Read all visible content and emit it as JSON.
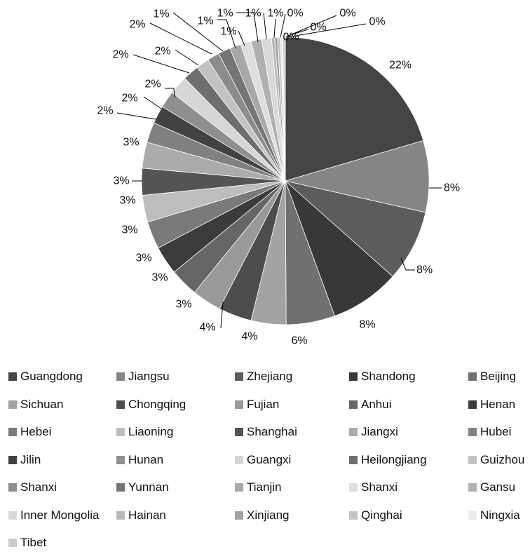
{
  "chart_data": {
    "type": "pie",
    "title": "",
    "slices": [
      {
        "label": "Guangdong",
        "value": 22,
        "display": "22%",
        "color": "#444444"
      },
      {
        "label": "Jiangsu",
        "value": 8,
        "display": "8%",
        "color": "#858585"
      },
      {
        "label": "Zhejiang",
        "value": 8,
        "display": "8%",
        "color": "#5c5c5c"
      },
      {
        "label": "Shandong",
        "value": 8,
        "display": "8%",
        "color": "#383838"
      },
      {
        "label": "Beijing",
        "value": 6,
        "display": "6%",
        "color": "#707070"
      },
      {
        "label": "Sichuan",
        "value": 4,
        "display": "4%",
        "color": "#a3a3a3"
      },
      {
        "label": "Chongqing",
        "value": 4,
        "display": "4%",
        "color": "#4d4d4d"
      },
      {
        "label": "Fujian",
        "value": 3,
        "display": "3%",
        "color": "#999999"
      },
      {
        "label": "Anhui",
        "value": 3,
        "display": "3%",
        "color": "#666666"
      },
      {
        "label": "Henan",
        "value": 3,
        "display": "3%",
        "color": "#3b3b3b"
      },
      {
        "label": "Hebei",
        "value": 3,
        "display": "3%",
        "color": "#7a7a7a"
      },
      {
        "label": "Liaoning",
        "value": 3,
        "display": "3%",
        "color": "#bdbdbd"
      },
      {
        "label": "Shanghai",
        "value": 3,
        "display": "3%",
        "color": "#545454"
      },
      {
        "label": "Jiangxi",
        "value": 3,
        "display": "3%",
        "color": "#ababab"
      },
      {
        "label": "Hubei",
        "value": 2,
        "display": "2%",
        "color": "#808080"
      },
      {
        "label": "Jilin",
        "value": 2,
        "display": "2%",
        "color": "#424242"
      },
      {
        "label": "Hunan",
        "value": 2,
        "display": "2%",
        "color": "#8f8f8f"
      },
      {
        "label": "Guangxi",
        "value": 2,
        "display": "2%",
        "color": "#d6d6d6"
      },
      {
        "label": "Heilongjiang",
        "value": 2,
        "display": "2%",
        "color": "#6e6e6e"
      },
      {
        "label": "Guizhou",
        "value": 2,
        "display": "2%",
        "color": "#c2c2c2"
      },
      {
        "label": "Shanxi",
        "value": 1,
        "display": "1%",
        "color": "#8c8c8c"
      },
      {
        "label": "Yunnan",
        "value": 1,
        "display": "1%",
        "color": "#757575"
      },
      {
        "label": "Tianjin",
        "value": 1,
        "display": "1%",
        "color": "#a8a8a8"
      },
      {
        "label": "Shanxi",
        "value": 1,
        "display": "1%",
        "color": "#dedede"
      },
      {
        "label": "Gansu",
        "value": 1,
        "display": "1%",
        "color": "#b0b0b0"
      },
      {
        "label": "Inner Mongolia",
        "value": 1,
        "display": "1%",
        "color": "#d9d9d9"
      },
      {
        "label": "Hainan",
        "value": 0,
        "display": "0%",
        "color": "#b8b8b8"
      },
      {
        "label": "Xinjiang",
        "value": 0,
        "display": "0%",
        "color": "#a1a1a1"
      },
      {
        "label": "Qinghai",
        "value": 0,
        "display": "0%",
        "color": "#c4c4c4"
      },
      {
        "label": "Ningxia",
        "value": 0,
        "display": "0%",
        "color": "#ebebeb"
      },
      {
        "label": "Tibet",
        "value": 0,
        "display": "0%",
        "color": "#cccccc"
      }
    ],
    "legend": "bottom"
  }
}
